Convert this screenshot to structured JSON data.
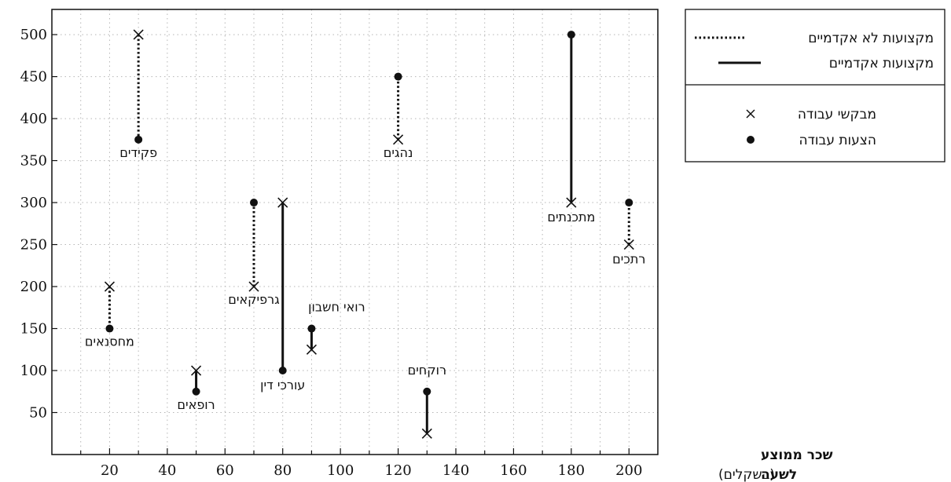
{
  "chart_data": {
    "type": "scatter",
    "x_ticks": [
      20,
      40,
      60,
      80,
      100,
      120,
      140,
      160,
      180,
      200
    ],
    "y_ticks": [
      50,
      100,
      150,
      200,
      250,
      300,
      350,
      400,
      450,
      500
    ],
    "xlim": [
      0,
      210
    ],
    "ylim": [
      0,
      530
    ],
    "grid": true,
    "xlabel": {
      "line1": "שכר ממוצע",
      "line2_bold": "לשעה",
      "line2_normal": "(בשקלים)"
    },
    "ylabel": "",
    "legend": {
      "placement": "top-right",
      "items": [
        {
          "key": "non_academic",
          "label": "מקצועות לא אקדמיים",
          "style": "dotted"
        },
        {
          "key": "academic",
          "label": "מקצועות אקדמיים",
          "style": "solid"
        },
        {
          "key": "seekers",
          "label": "מבקשי עבודה",
          "marker": "×"
        },
        {
          "key": "offers",
          "label": "הצעות עבודה",
          "marker": "●"
        }
      ]
    },
    "series": [
      {
        "label": "מחסנאים",
        "x": 20,
        "seekers": 200,
        "offers": 150,
        "style": "dotted"
      },
      {
        "label": "פקידים",
        "x": 30,
        "seekers": 500,
        "offers": 375,
        "style": "dotted"
      },
      {
        "label": "רופאים",
        "x": 50,
        "seekers": 100,
        "offers": 75,
        "style": "solid"
      },
      {
        "label": "גרפיקאים",
        "x": 70,
        "seekers": 200,
        "offers": 300,
        "style": "dotted"
      },
      {
        "label": "עורכי דין",
        "x": 80,
        "seekers": 300,
        "offers": 100,
        "style": "solid"
      },
      {
        "label": "רואי חשבון",
        "x": 90,
        "seekers": 125,
        "offers": 150,
        "style": "solid"
      },
      {
        "label": "נהגים",
        "x": 120,
        "seekers": 375,
        "offers": 450,
        "style": "dotted"
      },
      {
        "label": "רוקחים",
        "x": 130,
        "seekers": 25,
        "offers": 75,
        "style": "solid"
      },
      {
        "label": "מתכנתים",
        "x": 180,
        "seekers": 300,
        "offers": 500,
        "style": "solid"
      },
      {
        "label": "רתכים",
        "x": 200,
        "seekers": 250,
        "offers": 300,
        "style": "dotted"
      }
    ]
  }
}
